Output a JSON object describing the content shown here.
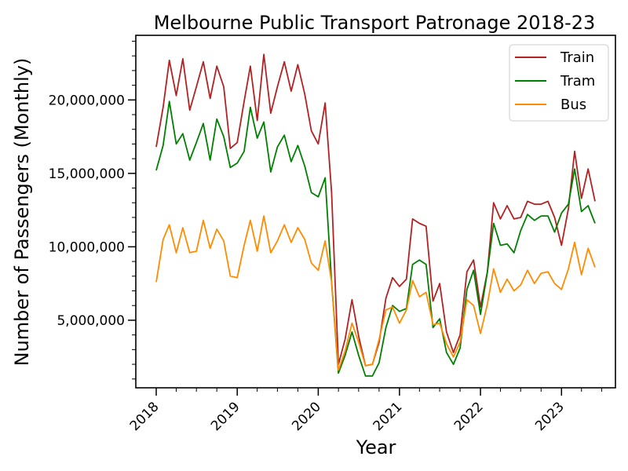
{
  "chart_data": {
    "type": "line",
    "title": "Melbourne Public Transport Patronage 2018-23",
    "xlabel": "Year",
    "ylabel": "Number of Passengers (Monthly)",
    "xlim": [
      "2017-10-01",
      "2023-09-01"
    ],
    "ylim": [
      400000,
      24400000
    ],
    "grid": false,
    "legend_position": "upper-right",
    "x_ticks": [
      {
        "value": "2018-01",
        "label": "2018"
      },
      {
        "value": "2019-01",
        "label": "2019"
      },
      {
        "value": "2020-01",
        "label": "2020"
      },
      {
        "value": "2021-01",
        "label": "2021"
      },
      {
        "value": "2022-01",
        "label": "2022"
      },
      {
        "value": "2023-01",
        "label": "2023"
      }
    ],
    "y_ticks": [
      {
        "value": 5000000,
        "label": "5,000,000"
      },
      {
        "value": 10000000,
        "label": "10,000,000"
      },
      {
        "value": 15000000,
        "label": "15,000,000"
      },
      {
        "value": 20000000,
        "label": "20,000,000"
      }
    ],
    "x": [
      "2018-01",
      "2018-02",
      "2018-03",
      "2018-04",
      "2018-05",
      "2018-06",
      "2018-07",
      "2018-08",
      "2018-09",
      "2018-10",
      "2018-11",
      "2018-12",
      "2019-01",
      "2019-02",
      "2019-03",
      "2019-04",
      "2019-05",
      "2019-06",
      "2019-07",
      "2019-08",
      "2019-09",
      "2019-10",
      "2019-11",
      "2019-12",
      "2020-01",
      "2020-02",
      "2020-03",
      "2020-04",
      "2020-05",
      "2020-06",
      "2020-07",
      "2020-08",
      "2020-09",
      "2020-10",
      "2020-11",
      "2020-12",
      "2021-01",
      "2021-02",
      "2021-03",
      "2021-04",
      "2021-05",
      "2021-06",
      "2021-07",
      "2021-08",
      "2021-09",
      "2021-10",
      "2021-11",
      "2021-12",
      "2022-01",
      "2022-02",
      "2022-03",
      "2022-04",
      "2022-05",
      "2022-06",
      "2022-07",
      "2022-08",
      "2022-09",
      "2022-10",
      "2022-11",
      "2022-12",
      "2023-01",
      "2023-02",
      "2023-03",
      "2023-04",
      "2023-05",
      "2023-06"
    ],
    "series": [
      {
        "name": "Train",
        "color": "#b22222",
        "values": [
          16800000,
          19500000,
          22700000,
          20300000,
          22800000,
          19300000,
          20900000,
          22600000,
          20100000,
          22300000,
          20900000,
          16700000,
          17100000,
          19900000,
          22300000,
          18600000,
          23100000,
          19100000,
          20900000,
          22600000,
          20600000,
          22400000,
          20400000,
          17900000,
          17000000,
          19800000,
          13700000,
          2000000,
          3700000,
          6400000,
          3900000,
          1900000,
          2000000,
          3500000,
          6500000,
          7900000,
          7300000,
          7800000,
          11900000,
          11600000,
          11400000,
          6300000,
          7500000,
          4200000,
          2800000,
          4000000,
          8300000,
          9100000,
          5900000,
          8300000,
          13000000,
          11900000,
          12800000,
          11900000,
          12000000,
          13100000,
          12900000,
          12900000,
          13100000,
          12000000,
          10100000,
          12600000,
          16500000,
          13300000,
          15300000,
          13100000
        ]
      },
      {
        "name": "Tram",
        "color": "#008000",
        "values": [
          15200000,
          16900000,
          19900000,
          17000000,
          17700000,
          15900000,
          17100000,
          18400000,
          15900000,
          18700000,
          17500000,
          15400000,
          15700000,
          16500000,
          19500000,
          17400000,
          18500000,
          15100000,
          16800000,
          17600000,
          15800000,
          16900000,
          15500000,
          13700000,
          13400000,
          14700000,
          7600000,
          1400000,
          2600000,
          4200000,
          2600000,
          1200000,
          1200000,
          2100000,
          4500000,
          6000000,
          5600000,
          5800000,
          8800000,
          9100000,
          8800000,
          4500000,
          5100000,
          2800000,
          2000000,
          3100000,
          7100000,
          8400000,
          5400000,
          8300000,
          11600000,
          10100000,
          10200000,
          9600000,
          11100000,
          12200000,
          11800000,
          12100000,
          12100000,
          11000000,
          12300000,
          12900000,
          15300000,
          12400000,
          12800000,
          11600000
        ]
      },
      {
        "name": "Bus",
        "color": "#ff8c00",
        "values": [
          7600000,
          10500000,
          11500000,
          9600000,
          11300000,
          9600000,
          9700000,
          11800000,
          9900000,
          11200000,
          10400000,
          8000000,
          7900000,
          10100000,
          11800000,
          9700000,
          12100000,
          9600000,
          10400000,
          11500000,
          10300000,
          11300000,
          10500000,
          8900000,
          8400000,
          10400000,
          7600000,
          1600000,
          2900000,
          4800000,
          3500000,
          1900000,
          2000000,
          3700000,
          5700000,
          5900000,
          4800000,
          5700000,
          7700000,
          6600000,
          6900000,
          4700000,
          4800000,
          3400000,
          2500000,
          3500000,
          6400000,
          6000000,
          4100000,
          6100000,
          8500000,
          6900000,
          7800000,
          7000000,
          7400000,
          8400000,
          7500000,
          8200000,
          8300000,
          7500000,
          7100000,
          8500000,
          10300000,
          8100000,
          9900000,
          8600000
        ]
      }
    ]
  }
}
